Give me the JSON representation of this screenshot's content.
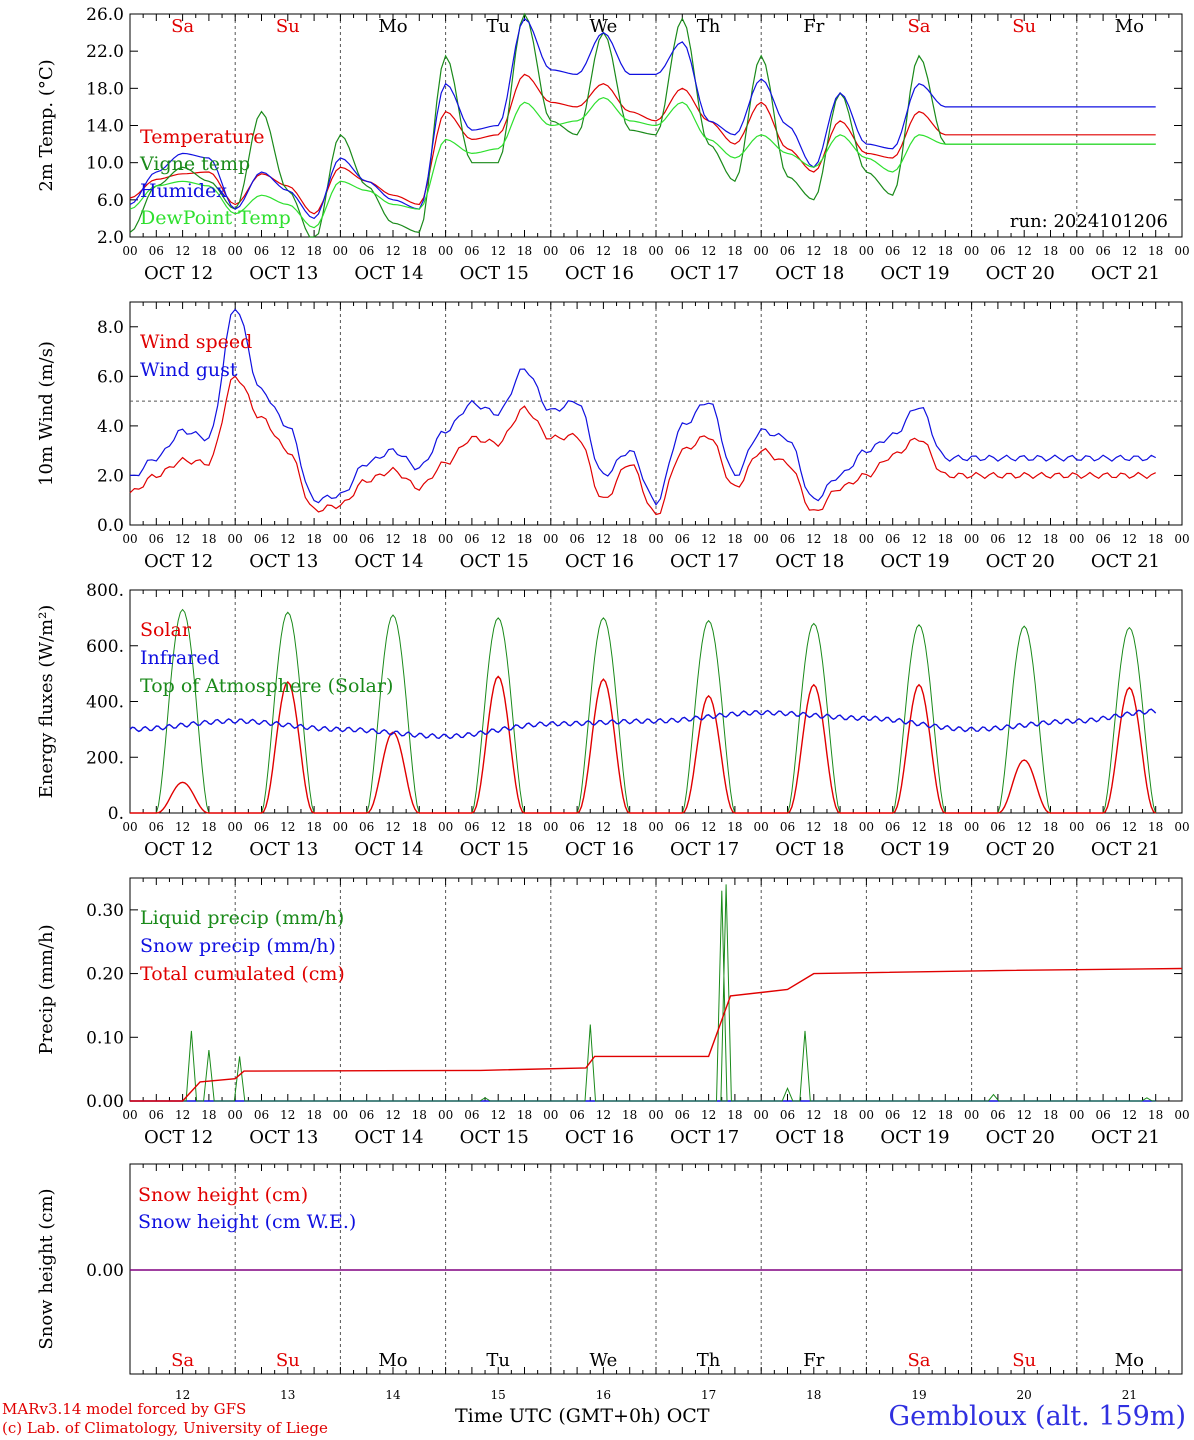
{
  "colors": {
    "red": "#e00000",
    "blue": "#1010e0",
    "green": "#1a8a1a",
    "lightgreen": "#2ee02e",
    "purple": "#800080",
    "grid": "#555555"
  },
  "day_names": [
    "Sa",
    "Su",
    "Mo",
    "Tu",
    "We",
    "Th",
    "Fr",
    "Sa",
    "Su",
    "Mo"
  ],
  "day_colors": [
    "red",
    "red",
    "black",
    "black",
    "black",
    "black",
    "black",
    "red",
    "red",
    "black"
  ],
  "dates": [
    "OCT 12",
    "OCT 13",
    "OCT 14",
    "OCT 15",
    "OCT 16",
    "OCT 17",
    "OCT 18",
    "OCT 19",
    "OCT 20",
    "OCT 21"
  ],
  "bottom_days": [
    "12",
    "13",
    "14",
    "15",
    "16",
    "17",
    "18",
    "19",
    "20",
    "21"
  ],
  "hour_labels": [
    "00",
    "06",
    "12",
    "18"
  ],
  "footer": {
    "model": "MARv3.14 model forced by GFS",
    "credit": "(c) Lab. of Climatology, University of Liege",
    "time_label": "Time UTC (GMT+0h) OCT",
    "location": "Gembloux (alt. 159m)"
  },
  "chart_data": [
    {
      "type": "line",
      "ylabel": "2m Temp. (°C)",
      "yticks": [
        "26.0",
        "22.0",
        "18.0",
        "14.0",
        "10.0",
        "6.0",
        "2.0"
      ],
      "ylim": [
        2,
        26
      ],
      "run_label": "run: 2024101206",
      "x_hours": [
        0,
        6,
        12,
        18,
        24,
        30,
        36,
        42,
        48,
        54,
        60,
        66,
        72,
        78,
        84,
        90,
        96,
        102,
        108,
        114,
        120,
        126,
        132,
        138,
        144,
        150,
        156,
        162,
        168,
        174,
        180,
        186,
        192,
        198,
        204,
        210,
        216,
        222,
        228,
        234
      ],
      "series": [
        {
          "name": "Temperature",
          "color": "red",
          "values": [
            6.2,
            8.2,
            8.8,
            9.0,
            5.5,
            8.8,
            7.5,
            4.5,
            9.5,
            8.0,
            6.5,
            5.5,
            15.5,
            12.5,
            13.0,
            19.5,
            16.5,
            16.0,
            18.5,
            15.5,
            14.5,
            18.0,
            14.5,
            12.0,
            16.5,
            11.5,
            9.0,
            14.5,
            11.0,
            10.5,
            15.5,
            13.0,
            13.0,
            13.0,
            13.0,
            13.0,
            13.0,
            13.0,
            13.0,
            13.0
          ]
        },
        {
          "name": "Vigne temp",
          "color": "green",
          "values": [
            2.5,
            7.5,
            9.5,
            8.0,
            5.0,
            15.5,
            7.0,
            1.5,
            13.0,
            7.5,
            3.5,
            2.5,
            21.5,
            10.0,
            10.0,
            26.0,
            14.5,
            13.0,
            24.0,
            13.5,
            13.0,
            25.5,
            12.0,
            8.0,
            21.5,
            8.5,
            6.0,
            17.5,
            9.0,
            6.5,
            21.5,
            12.0,
            12.0,
            12.0,
            12.0,
            12.0,
            12.0,
            12.0,
            12.0,
            12.0
          ]
        },
        {
          "name": "Humidex",
          "color": "blue",
          "values": [
            5.5,
            9.0,
            11.0,
            10.5,
            5.0,
            9.0,
            7.0,
            4.0,
            10.5,
            8.0,
            6.0,
            5.0,
            18.5,
            13.5,
            14.0,
            25.5,
            20.0,
            19.5,
            24.0,
            19.5,
            19.5,
            23.0,
            14.5,
            13.0,
            19.0,
            14.0,
            9.5,
            17.5,
            12.0,
            11.5,
            18.5,
            16.0,
            16.0,
            16.0,
            16.0,
            16.0,
            16.0,
            16.0,
            16.0,
            16.0
          ]
        },
        {
          "name": "DewPoint Temp",
          "color": "lightgreen",
          "values": [
            5.0,
            7.5,
            8.0,
            7.5,
            4.5,
            6.5,
            5.5,
            3.0,
            8.0,
            7.0,
            5.5,
            5.0,
            12.5,
            11.0,
            11.5,
            16.5,
            14.0,
            14.5,
            17.0,
            14.5,
            14.0,
            16.5,
            12.5,
            10.5,
            13.0,
            11.0,
            9.5,
            13.0,
            10.5,
            9.0,
            13.0,
            12.0,
            12.0,
            12.0,
            12.0,
            12.0,
            12.0,
            12.0,
            12.0,
            12.0
          ]
        }
      ]
    },
    {
      "type": "line",
      "ylabel": "10m Wind (m/s)",
      "yticks": [
        "8.0",
        "6.0",
        "4.0",
        "2.0",
        "0.0"
      ],
      "ylim": [
        0,
        9
      ],
      "reference_line": 5.0,
      "x_hours": [
        0,
        6,
        12,
        18,
        24,
        30,
        36,
        42,
        48,
        54,
        60,
        66,
        72,
        78,
        84,
        90,
        96,
        102,
        108,
        114,
        120,
        126,
        132,
        138,
        144,
        150,
        156,
        162,
        168,
        174,
        180,
        186,
        192,
        198,
        204,
        210,
        216,
        222,
        228,
        234
      ],
      "series": [
        {
          "name": "Wind speed",
          "color": "red",
          "values": [
            1.3,
            2.0,
            2.6,
            2.5,
            6.0,
            4.3,
            3.0,
            0.6,
            0.8,
            1.8,
            2.2,
            1.5,
            2.5,
            3.5,
            3.3,
            4.7,
            3.5,
            3.6,
            1.0,
            2.5,
            0.4,
            3.0,
            3.6,
            1.5,
            3.0,
            2.5,
            0.5,
            1.5,
            2.0,
            2.8,
            3.5,
            2.0,
            2.0,
            2.0,
            2.0,
            2.0,
            2.0,
            2.0,
            2.0,
            2.0
          ]
        },
        {
          "name": "Wind gust",
          "color": "blue",
          "values": [
            1.9,
            2.7,
            3.8,
            3.5,
            8.8,
            5.4,
            4.0,
            1.0,
            1.2,
            2.5,
            3.0,
            2.3,
            3.8,
            4.9,
            4.5,
            6.3,
            4.6,
            5.0,
            2.0,
            3.0,
            0.9,
            4.0,
            5.0,
            2.0,
            3.8,
            3.5,
            1.0,
            2.0,
            3.0,
            3.6,
            4.8,
            2.7,
            2.7,
            2.7,
            2.7,
            2.7,
            2.7,
            2.7,
            2.7,
            2.7
          ]
        }
      ]
    },
    {
      "type": "line",
      "ylabel": "Energy fluxes (W/m²)",
      "yticks": [
        "800.",
        "600.",
        "400.",
        "200.",
        "0."
      ],
      "ylim": [
        0,
        800
      ],
      "series": [
        {
          "name": "Solar",
          "color": "red",
          "peaks": [
            110,
            470,
            290,
            490,
            480,
            420,
            460,
            460,
            190,
            450
          ]
        },
        {
          "name": "Infrared",
          "color": "blue",
          "daily_levels": [
            300,
            330,
            300,
            275,
            320,
            330,
            360,
            340,
            300,
            330
          ],
          "end_value": 365
        },
        {
          "name": "Top of Atmosphere (Solar)",
          "color": "green",
          "peaks": [
            730,
            720,
            710,
            700,
            700,
            690,
            680,
            675,
            670,
            665
          ]
        }
      ]
    },
    {
      "type": "line",
      "ylabel": "Precip (mm/h)",
      "yticks": [
        "0.30",
        "0.20",
        "0.10",
        "0.00"
      ],
      "ylim": [
        0,
        0.35
      ],
      "series": [
        {
          "name": "Liquid precip (mm/h)",
          "color": "green",
          "spikes": [
            [
              14,
              0.11
            ],
            [
              18,
              0.08
            ],
            [
              25,
              0.07
            ],
            [
              81,
              0.005
            ],
            [
              105,
              0.12
            ],
            [
              135,
              0.33
            ],
            [
              136,
              0.34
            ],
            [
              150,
              0.02
            ],
            [
              154,
              0.11
            ],
            [
              197,
              0.01
            ],
            [
              232,
              0.005
            ]
          ]
        },
        {
          "name": "Snow precip (mm/h)",
          "color": "blue",
          "values": [
            0
          ]
        },
        {
          "name": "Total cumulated (cm)",
          "color": "red",
          "steps": [
            [
              0,
              0.0
            ],
            [
              12,
              0.0
            ],
            [
              16,
              0.03
            ],
            [
              24,
              0.035
            ],
            [
              26,
              0.047
            ],
            [
              80,
              0.048
            ],
            [
              104,
              0.052
            ],
            [
              106,
              0.07
            ],
            [
              132,
              0.07
            ],
            [
              137,
              0.165
            ],
            [
              150,
              0.175
            ],
            [
              156,
              0.2
            ],
            [
              200,
              0.205
            ],
            [
              240,
              0.208
            ]
          ]
        }
      ]
    },
    {
      "type": "line",
      "ylabel": "Snow height (cm)",
      "yticks": [
        "0.00"
      ],
      "series": [
        {
          "name": "Snow height (cm)",
          "color": "red",
          "values": [
            0
          ]
        },
        {
          "name": "Snow height (cm W.E.)",
          "color": "blue",
          "values": [
            0
          ]
        }
      ]
    }
  ]
}
